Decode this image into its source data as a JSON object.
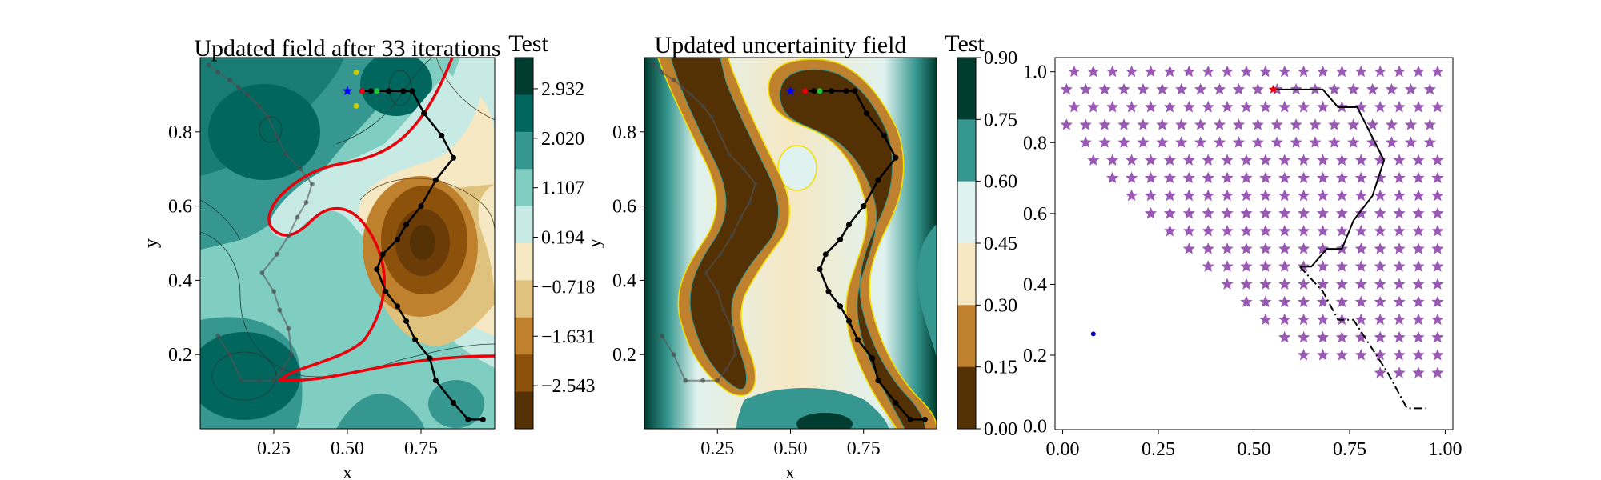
{
  "chart_data": [
    {
      "type": "contour",
      "title": "Updated field after 33 iterations",
      "xlabel": "x",
      "ylabel": "y",
      "xlim": [
        0.0,
        1.0
      ],
      "ylim": [
        0.0,
        1.0
      ],
      "xticks": [
        "0.25",
        "0.50",
        "0.75"
      ],
      "yticks": [
        "0.2",
        "0.4",
        "0.6",
        "0.8"
      ],
      "colorbar": {
        "title": "Test",
        "ticks": [
          "2.932",
          "2.020",
          "1.107",
          "0.194",
          "−0.718",
          "−1.631",
          "−2.543"
        ],
        "level_colors": [
          "#003c30",
          "#01665e",
          "#35978f",
          "#80cdc1",
          "#c7eae5",
          "#f6e8c3",
          "#dfc27d",
          "#bf812d",
          "#8c510a",
          "#543005"
        ]
      },
      "threshold_contour_color": "#e8000b",
      "path": {
        "name": "Path",
        "x": [
          0.96,
          0.91,
          0.86,
          0.8,
          0.78,
          0.73,
          0.7,
          0.67,
          0.63,
          0.6,
          0.62,
          0.67,
          0.7,
          0.75,
          0.8,
          0.86,
          0.82,
          0.76,
          0.72,
          0.69,
          0.64,
          0.58,
          0.55
        ],
        "y": [
          0.025,
          0.025,
          0.07,
          0.13,
          0.19,
          0.24,
          0.29,
          0.33,
          0.37,
          0.43,
          0.47,
          0.51,
          0.55,
          0.6,
          0.67,
          0.73,
          0.79,
          0.85,
          0.91,
          0.91,
          0.91,
          0.91,
          0.91
        ]
      },
      "past_path": {
        "x": [
          0.06,
          0.1,
          0.14,
          0.2,
          0.25,
          0.28,
          0.31,
          0.3,
          0.27,
          0.25,
          0.21,
          0.26,
          0.3,
          0.33,
          0.36,
          0.38,
          0.34,
          0.29,
          0.26,
          0.23,
          0.2,
          0.16,
          0.13,
          0.1,
          0.06,
          0.03
        ],
        "y": [
          0.25,
          0.2,
          0.13,
          0.13,
          0.13,
          0.16,
          0.2,
          0.27,
          0.32,
          0.37,
          0.42,
          0.47,
          0.52,
          0.57,
          0.61,
          0.66,
          0.7,
          0.74,
          0.79,
          0.84,
          0.87,
          0.9,
          0.92,
          0.94,
          0.96,
          0.98
        ]
      },
      "markers": [
        {
          "name": "start",
          "x": 0.5,
          "y": 0.91,
          "color": "#0000ff",
          "shape": "star"
        },
        {
          "name": "current",
          "x": 0.55,
          "y": 0.91,
          "color": "#e8000b",
          "shape": "dot"
        },
        {
          "name": "candidate",
          "x": 0.6,
          "y": 0.91,
          "color": "#1ac938",
          "shape": "dot"
        },
        {
          "name": "candidate-up",
          "x": 0.53,
          "y": 0.96,
          "color": "#cccc00",
          "shape": "dot"
        },
        {
          "name": "candidate-down",
          "x": 0.53,
          "y": 0.87,
          "color": "#cccc00",
          "shape": "dot"
        }
      ]
    },
    {
      "type": "contour",
      "title": "Updated uncertainity field",
      "xlabel": "x",
      "ylabel": "y",
      "xlim": [
        0.0,
        1.0
      ],
      "ylim": [
        0.0,
        1.0
      ],
      "xticks": [
        "0.25",
        "0.50",
        "0.75"
      ],
      "yticks": [
        "0.2",
        "0.4",
        "0.6",
        "0.8"
      ],
      "colorbar": {
        "title": "Test",
        "ticks": [
          "0.90",
          "0.75",
          "0.60",
          "0.45",
          "0.30",
          "0.15",
          "0.00"
        ],
        "level_colors": [
          "#003c30",
          "#35978f",
          "#e0f2ef",
          "#f6e8c3",
          "#bf812d",
          "#543005"
        ]
      },
      "path": {
        "x": [
          0.96,
          0.91,
          0.86,
          0.8,
          0.78,
          0.73,
          0.7,
          0.67,
          0.63,
          0.6,
          0.62,
          0.67,
          0.7,
          0.75,
          0.8,
          0.86,
          0.82,
          0.76,
          0.72,
          0.69,
          0.64,
          0.58,
          0.55
        ],
        "y": [
          0.025,
          0.025,
          0.07,
          0.13,
          0.19,
          0.24,
          0.29,
          0.33,
          0.37,
          0.43,
          0.47,
          0.51,
          0.55,
          0.6,
          0.67,
          0.73,
          0.79,
          0.85,
          0.91,
          0.91,
          0.91,
          0.91,
          0.91
        ]
      },
      "past_path": {
        "x": [
          0.06,
          0.1,
          0.14,
          0.2,
          0.25,
          0.28,
          0.31,
          0.3,
          0.27,
          0.25,
          0.21,
          0.26,
          0.3,
          0.33,
          0.36,
          0.38,
          0.34,
          0.29,
          0.26,
          0.23,
          0.2,
          0.16,
          0.13,
          0.1,
          0.06,
          0.03
        ],
        "y": [
          0.25,
          0.2,
          0.13,
          0.13,
          0.13,
          0.16,
          0.2,
          0.27,
          0.32,
          0.37,
          0.42,
          0.47,
          0.52,
          0.57,
          0.61,
          0.66,
          0.7,
          0.74,
          0.79,
          0.84,
          0.87,
          0.9,
          0.92,
          0.94,
          0.96,
          0.98
        ]
      },
      "markers": [
        {
          "name": "start",
          "x": 0.5,
          "y": 0.91,
          "color": "#0000ff",
          "shape": "star"
        },
        {
          "name": "current",
          "x": 0.55,
          "y": 0.91,
          "color": "#e8000b",
          "shape": "dot"
        },
        {
          "name": "candidate",
          "x": 0.6,
          "y": 0.91,
          "color": "#1ac938",
          "shape": "dot"
        }
      ]
    },
    {
      "type": "scatter",
      "xlim": [
        -0.02,
        1.02
      ],
      "ylim": [
        -0.01,
        1.04
      ],
      "xticks": [
        "0.00",
        "0.25",
        "0.50",
        "0.75",
        "1.00"
      ],
      "yticks": [
        "0.0",
        "0.2",
        "0.4",
        "0.6",
        "0.8",
        "1.0"
      ],
      "star_color": "#9b59b6",
      "grid_step_x": 0.05,
      "row_y": [
        1.0,
        0.95,
        0.9,
        0.85,
        0.8,
        0.75,
        0.7,
        0.65,
        0.6,
        0.55,
        0.5,
        0.45,
        0.4,
        0.35,
        0.3,
        0.25,
        0.2,
        0.15
      ],
      "row_x_start": [
        0.03,
        0.01,
        0.03,
        0.01,
        0.06,
        0.08,
        0.13,
        0.18,
        0.23,
        0.28,
        0.33,
        0.38,
        0.43,
        0.48,
        0.53,
        0.58,
        0.63,
        0.83
      ],
      "row_x_end": [
        0.98,
        0.98,
        0.98,
        0.98,
        0.98,
        0.98,
        0.98,
        0.98,
        0.98,
        0.98,
        0.98,
        0.98,
        0.98,
        0.98,
        0.98,
        0.98,
        0.98,
        0.98
      ],
      "path": {
        "x": [
          0.55,
          0.61,
          0.68,
          0.72,
          0.77,
          0.84,
          0.81,
          0.76,
          0.73,
          0.69,
          0.65,
          0.62
        ],
        "y": [
          0.95,
          0.95,
          0.95,
          0.9,
          0.9,
          0.75,
          0.65,
          0.58,
          0.5,
          0.5,
          0.45,
          0.45
        ]
      },
      "dashdot_path": {
        "x": [
          0.62,
          0.68,
          0.72,
          0.76,
          0.79,
          0.85,
          0.9,
          0.95
        ],
        "y": [
          0.45,
          0.38,
          0.3,
          0.3,
          0.25,
          0.15,
          0.05,
          0.05
        ]
      },
      "markers": [
        {
          "name": "current",
          "x": 0.55,
          "y": 0.95,
          "color": "#e8000b"
        },
        {
          "name": "origin-point",
          "x": 0.08,
          "y": 0.26,
          "color": "#0000cc"
        }
      ]
    }
  ]
}
